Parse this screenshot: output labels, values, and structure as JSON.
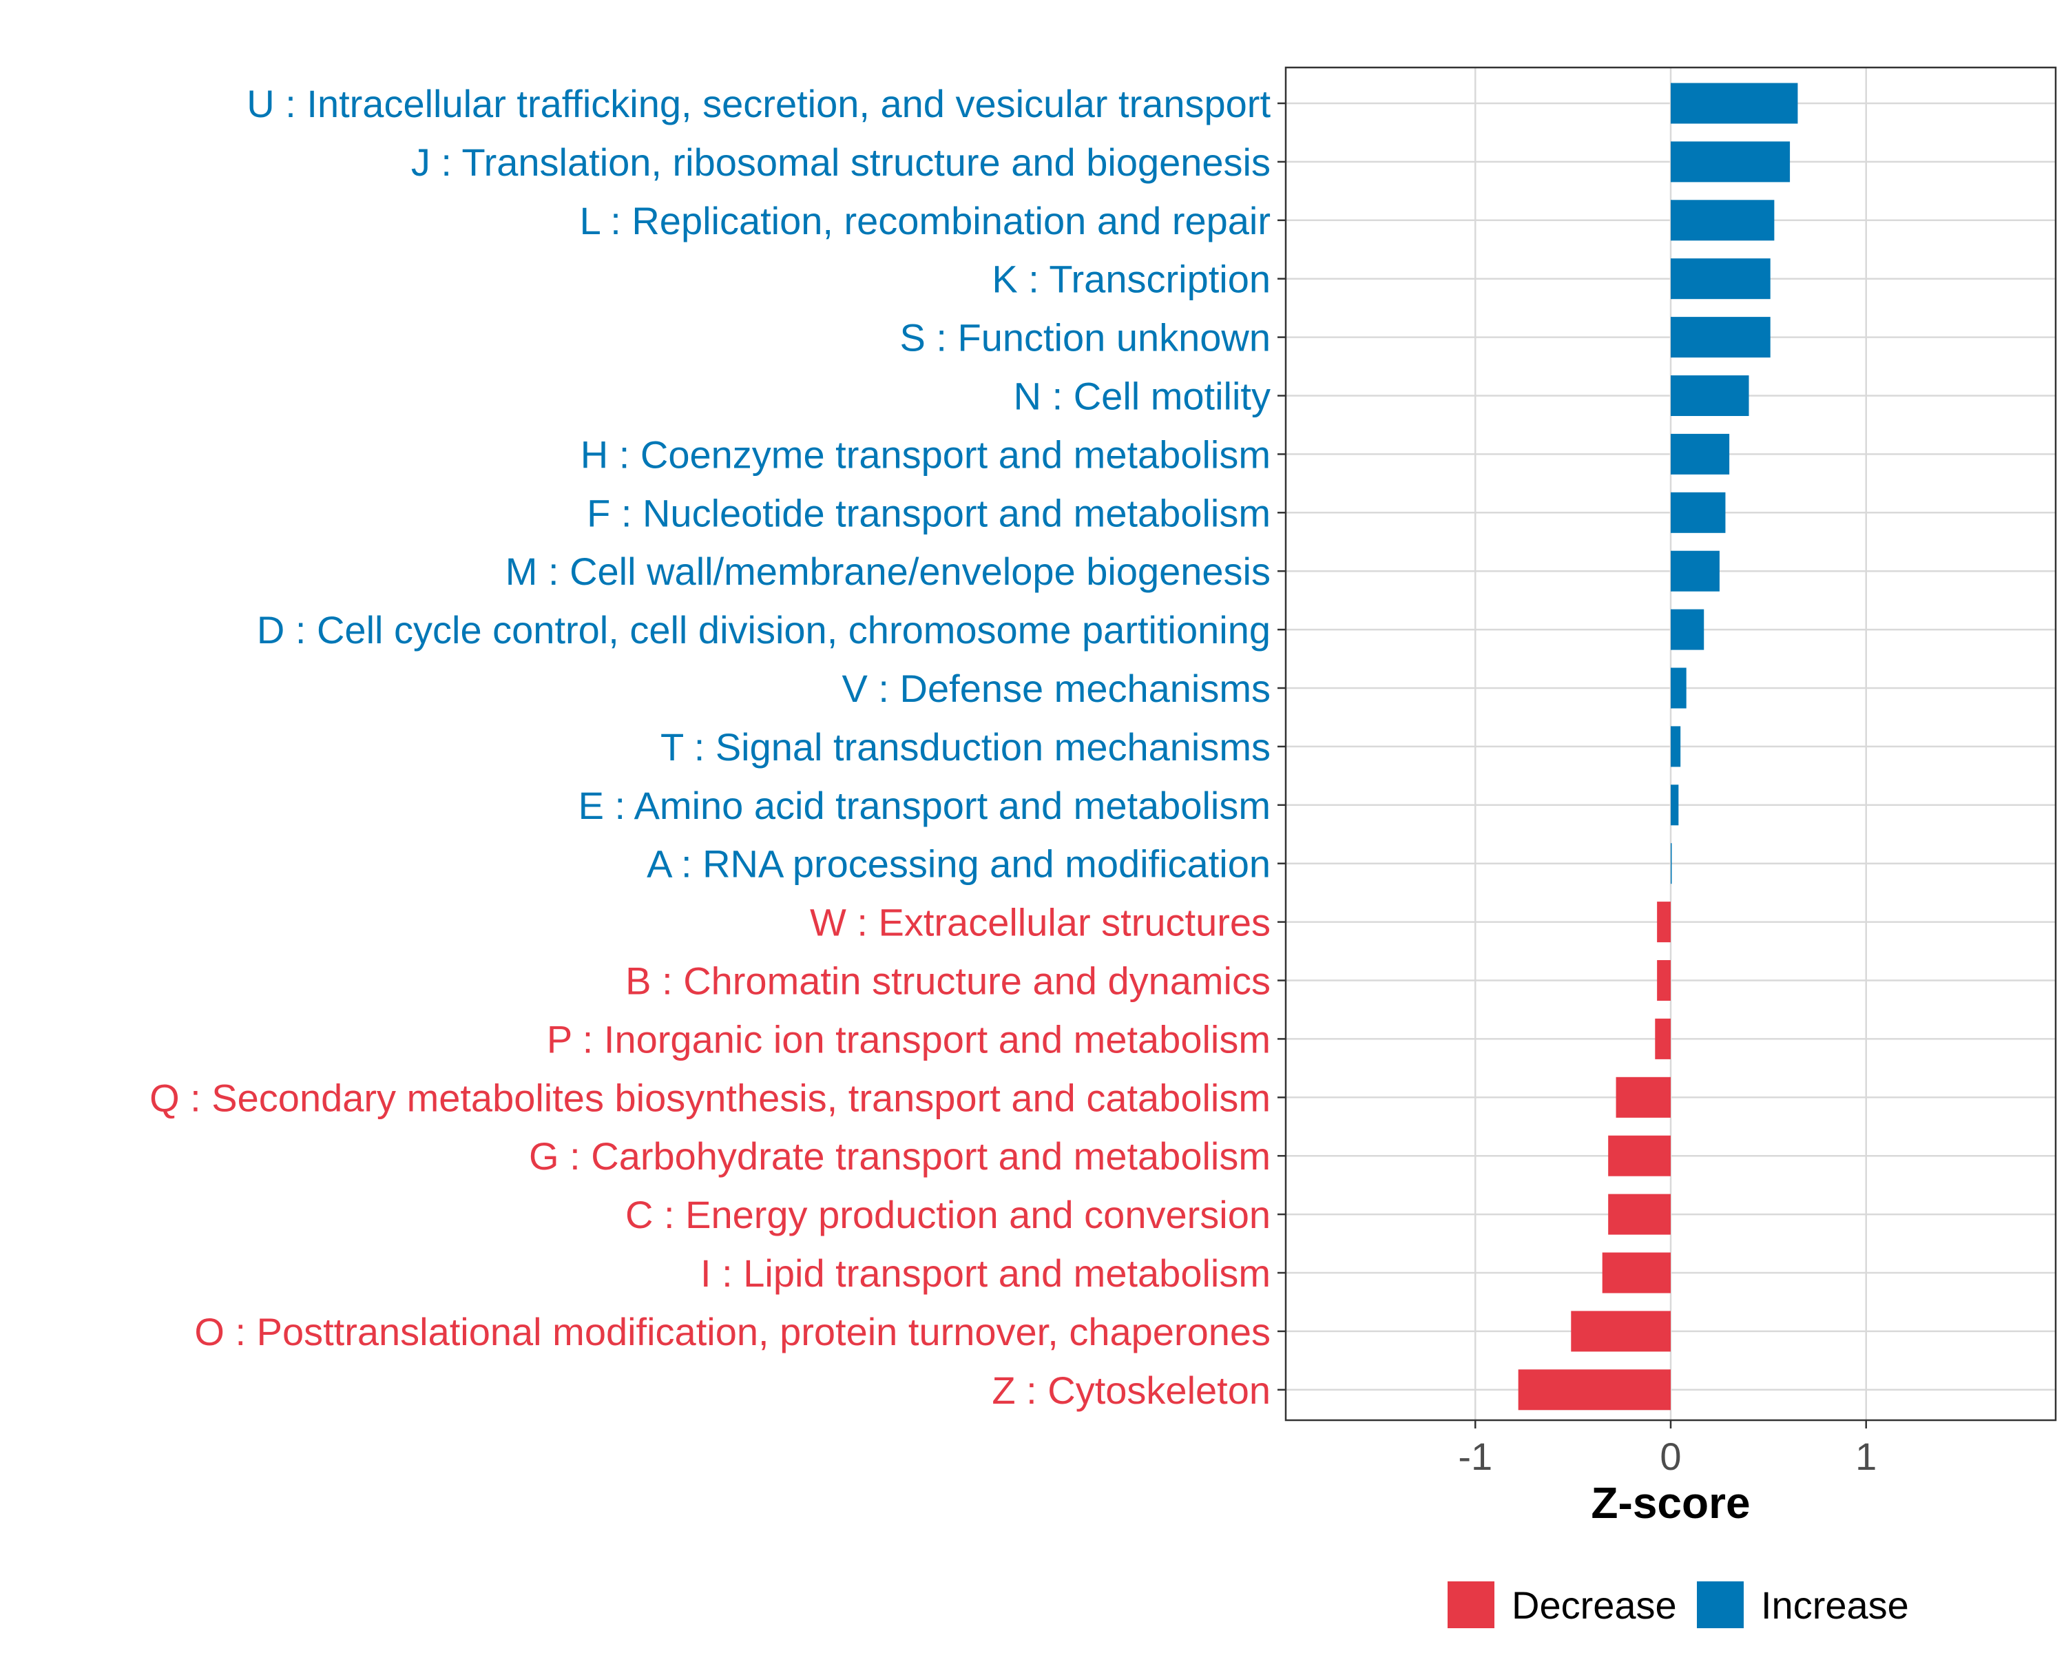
{
  "chart_data": {
    "type": "bar",
    "orientation": "horizontal",
    "xlabel": "Z-score",
    "ylabel": "",
    "xlim": [
      -1.97,
      1.97
    ],
    "xticks": [
      {
        "value": -1,
        "label": "-1"
      },
      {
        "value": 0,
        "label": "0"
      },
      {
        "value": 1,
        "label": "1"
      }
    ],
    "grid": true,
    "legend_position": "bottom",
    "legend": [
      {
        "name": "Decrease",
        "color": "#E63946"
      },
      {
        "name": "Increase",
        "color": "#0077B6"
      }
    ],
    "categories": [
      {
        "label": "U : Intracellular trafficking, secretion, and vesicular transport",
        "value": 0.65,
        "group": "Increase"
      },
      {
        "label": "J : Translation, ribosomal structure and biogenesis",
        "value": 0.61,
        "group": "Increase"
      },
      {
        "label": "L : Replication, recombination and repair",
        "value": 0.53,
        "group": "Increase"
      },
      {
        "label": "K : Transcription",
        "value": 0.51,
        "group": "Increase"
      },
      {
        "label": "S : Function unknown",
        "value": 0.51,
        "group": "Increase"
      },
      {
        "label": "N : Cell motility",
        "value": 0.4,
        "group": "Increase"
      },
      {
        "label": "H : Coenzyme transport and metabolism",
        "value": 0.3,
        "group": "Increase"
      },
      {
        "label": "F : Nucleotide transport and metabolism",
        "value": 0.28,
        "group": "Increase"
      },
      {
        "label": "M : Cell wall/membrane/envelope biogenesis",
        "value": 0.25,
        "group": "Increase"
      },
      {
        "label": "D : Cell cycle control, cell division, chromosome partitioning",
        "value": 0.17,
        "group": "Increase"
      },
      {
        "label": "V : Defense mechanisms",
        "value": 0.08,
        "group": "Increase"
      },
      {
        "label": "T : Signal transduction mechanisms",
        "value": 0.05,
        "group": "Increase"
      },
      {
        "label": "E : Amino acid transport and metabolism",
        "value": 0.04,
        "group": "Increase"
      },
      {
        "label": "A : RNA processing and modification",
        "value": 0.005,
        "group": "Increase"
      },
      {
        "label": "W : Extracellular structures",
        "value": -0.07,
        "group": "Decrease"
      },
      {
        "label": "B : Chromatin structure and dynamics",
        "value": -0.07,
        "group": "Decrease"
      },
      {
        "label": "P : Inorganic ion transport and metabolism",
        "value": -0.08,
        "group": "Decrease"
      },
      {
        "label": "Q : Secondary metabolites biosynthesis, transport and catabolism",
        "value": -0.28,
        "group": "Decrease"
      },
      {
        "label": "G : Carbohydrate transport and metabolism",
        "value": -0.32,
        "group": "Decrease"
      },
      {
        "label": "C : Energy production and conversion",
        "value": -0.32,
        "group": "Decrease"
      },
      {
        "label": "I : Lipid transport and metabolism",
        "value": -0.35,
        "group": "Decrease"
      },
      {
        "label": "O : Posttranslational modification, protein turnover, chaperones",
        "value": -0.51,
        "group": "Decrease"
      },
      {
        "label": "Z : Cytoskeleton",
        "value": -0.78,
        "group": "Decrease"
      }
    ]
  }
}
